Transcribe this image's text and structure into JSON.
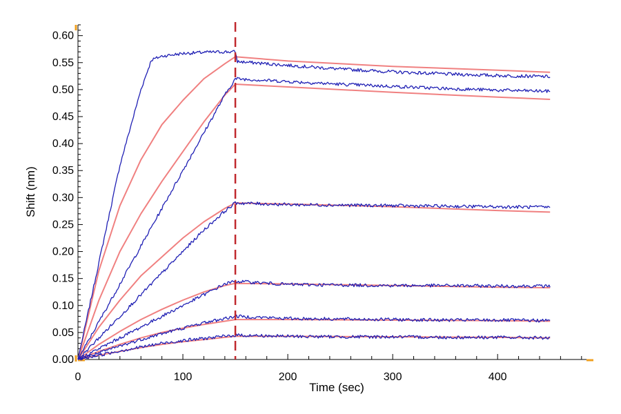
{
  "chart_data": {
    "type": "line",
    "title": "",
    "xlabel": "Time (sec)",
    "ylabel": "Shift (nm)",
    "xlim": [
      0,
      490
    ],
    "ylim": [
      0,
      0.62
    ],
    "x_ticks": [
      0,
      100,
      200,
      300,
      400
    ],
    "y_ticks": [
      0.0,
      0.05,
      0.1,
      0.15,
      0.2,
      0.25,
      0.3,
      0.35,
      0.4,
      0.45,
      0.5,
      0.55,
      0.6
    ],
    "grid": false,
    "legend": "none",
    "colors": {
      "measured": "#1f1fb4",
      "fit": "#f08080",
      "dissociation_marker": "#c0282d",
      "axis_end_marker": "#f0a020"
    },
    "association_end_time": 150,
    "end_time": 450,
    "series": [
      {
        "role": "measured",
        "t": [
          0,
          20,
          40,
          60,
          70,
          80,
          100,
          120,
          140,
          150,
          152,
          200,
          250,
          300,
          350,
          400,
          450
        ],
        "shift": [
          0.0,
          0.18,
          0.36,
          0.5,
          0.555,
          0.562,
          0.567,
          0.569,
          0.57,
          0.57,
          0.552,
          0.545,
          0.538,
          0.533,
          0.529,
          0.526,
          0.524
        ]
      },
      {
        "role": "fit",
        "t": [
          0,
          20,
          40,
          60,
          80,
          100,
          120,
          140,
          150,
          200,
          300,
          400,
          450
        ],
        "shift": [
          0.0,
          0.165,
          0.285,
          0.37,
          0.435,
          0.48,
          0.52,
          0.548,
          0.561,
          0.553,
          0.543,
          0.536,
          0.532
        ]
      },
      {
        "role": "measured",
        "t": [
          0,
          20,
          40,
          60,
          80,
          100,
          120,
          140,
          150,
          152,
          200,
          250,
          300,
          350,
          400,
          450
        ],
        "shift": [
          0.0,
          0.07,
          0.14,
          0.21,
          0.28,
          0.35,
          0.42,
          0.49,
          0.52,
          0.52,
          0.515,
          0.51,
          0.506,
          0.502,
          0.499,
          0.497
        ]
      },
      {
        "role": "fit",
        "t": [
          0,
          20,
          40,
          60,
          80,
          100,
          120,
          140,
          150,
          200,
          300,
          400,
          450
        ],
        "shift": [
          0.0,
          0.11,
          0.2,
          0.27,
          0.33,
          0.385,
          0.44,
          0.49,
          0.51,
          0.505,
          0.495,
          0.486,
          0.482
        ]
      },
      {
        "role": "measured",
        "t": [
          0,
          20,
          40,
          60,
          80,
          100,
          120,
          140,
          150,
          200,
          250,
          300,
          350,
          400,
          450
        ],
        "shift": [
          0.0,
          0.04,
          0.08,
          0.12,
          0.16,
          0.2,
          0.24,
          0.275,
          0.29,
          0.287,
          0.286,
          0.285,
          0.284,
          0.283,
          0.282
        ]
      },
      {
        "role": "fit",
        "t": [
          0,
          20,
          40,
          60,
          80,
          100,
          120,
          140,
          150,
          200,
          300,
          400,
          450
        ],
        "shift": [
          0.0,
          0.06,
          0.11,
          0.155,
          0.19,
          0.225,
          0.255,
          0.28,
          0.29,
          0.288,
          0.283,
          0.276,
          0.273
        ]
      },
      {
        "role": "measured",
        "t": [
          0,
          20,
          40,
          60,
          80,
          100,
          120,
          140,
          150,
          200,
          250,
          300,
          350,
          400,
          450
        ],
        "shift": [
          0.0,
          0.02,
          0.04,
          0.06,
          0.08,
          0.1,
          0.12,
          0.14,
          0.145,
          0.139,
          0.138,
          0.137,
          0.137,
          0.136,
          0.136
        ]
      },
      {
        "role": "fit",
        "t": [
          0,
          20,
          40,
          60,
          80,
          100,
          120,
          140,
          150,
          200,
          300,
          400,
          450
        ],
        "shift": [
          0.0,
          0.028,
          0.052,
          0.074,
          0.093,
          0.11,
          0.125,
          0.137,
          0.141,
          0.14,
          0.137,
          0.134,
          0.133
        ]
      },
      {
        "role": "measured",
        "t": [
          0,
          20,
          40,
          60,
          80,
          100,
          120,
          140,
          150,
          200,
          250,
          300,
          350,
          400,
          450
        ],
        "shift": [
          0.0,
          0.012,
          0.025,
          0.037,
          0.048,
          0.058,
          0.068,
          0.076,
          0.08,
          0.076,
          0.075,
          0.074,
          0.073,
          0.073,
          0.072
        ]
      },
      {
        "role": "fit",
        "t": [
          0,
          20,
          40,
          60,
          80,
          100,
          120,
          140,
          150,
          200,
          300,
          400,
          450
        ],
        "shift": [
          0.0,
          0.015,
          0.028,
          0.04,
          0.05,
          0.058,
          0.065,
          0.071,
          0.074,
          0.074,
          0.073,
          0.072,
          0.071
        ]
      },
      {
        "role": "measured",
        "t": [
          0,
          20,
          40,
          60,
          80,
          100,
          120,
          140,
          150,
          200,
          250,
          300,
          350,
          400,
          450
        ],
        "shift": [
          0.0,
          0.008,
          0.016,
          0.023,
          0.03,
          0.035,
          0.039,
          0.043,
          0.045,
          0.043,
          0.042,
          0.042,
          0.041,
          0.041,
          0.04
        ]
      },
      {
        "role": "fit",
        "t": [
          0,
          20,
          40,
          60,
          80,
          100,
          120,
          140,
          150,
          200,
          300,
          400,
          450
        ],
        "shift": [
          0.0,
          0.008,
          0.015,
          0.022,
          0.028,
          0.033,
          0.037,
          0.041,
          0.043,
          0.043,
          0.042,
          0.041,
          0.04
        ]
      }
    ]
  }
}
